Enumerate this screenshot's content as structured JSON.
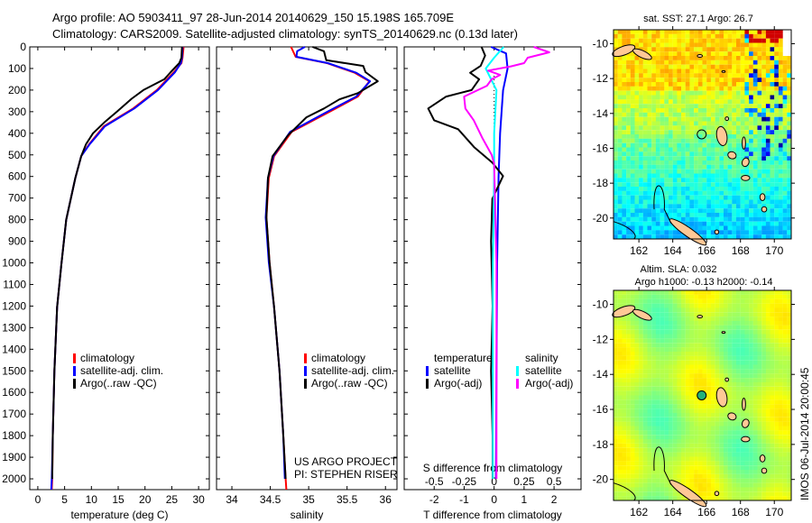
{
  "title_line1": "Argo profile: AO 5903411_97 28-Jun-2014 20140629_150 15.198S 165.709E",
  "title_line2": "Climatology: CARS2009. Satellite-adjusted climatology: synTS_20140629.nc (0.13d later)",
  "depth_ticks": [
    0,
    100,
    200,
    300,
    400,
    500,
    600,
    700,
    800,
    900,
    1000,
    1100,
    1200,
    1300,
    1400,
    1500,
    1600,
    1700,
    1800,
    1900,
    2000
  ],
  "depth_range": [
    0,
    2050
  ],
  "colors": {
    "climatology": "#ff0000",
    "satellite": "#0000ff",
    "argo": "#000000",
    "sal_satellite": "#00ffff",
    "sal_argo": "#ff00ff",
    "land": "#ffc896"
  },
  "chart_data": [
    {
      "type": "line",
      "id": "temperature",
      "xlabel": "temperature (deg C)",
      "xlim": [
        -1.5,
        32
      ],
      "xticks": [
        0,
        5,
        10,
        15,
        20,
        25,
        30
      ],
      "legend": [
        "climatology",
        "satellite-adj. clim.",
        "Argo(..raw -QC)"
      ],
      "series": [
        {
          "name": "climatology",
          "color": "#ff0000",
          "depth": [
            0,
            50,
            75,
            117,
            200,
            285,
            368,
            450,
            506,
            607,
            800,
            1008,
            1205,
            1500,
            1800,
            2000,
            2050
          ],
          "values": [
            27.2,
            27.0,
            26.8,
            25.4,
            22.2,
            17.8,
            12.3,
            9.6,
            8.1,
            7.0,
            5.3,
            4.4,
            3.6,
            3.1,
            2.8,
            2.7,
            2.6
          ]
        },
        {
          "name": "satellite-adj. clim.",
          "color": "#0000ff",
          "depth": [
            0,
            50,
            75,
            117,
            200,
            285,
            368,
            450,
            506,
            607,
            800,
            1008,
            1205,
            1500,
            1800,
            2000,
            2050
          ],
          "values": [
            27.0,
            26.9,
            26.7,
            25.6,
            22.4,
            18.0,
            12.5,
            9.7,
            8.1,
            7.0,
            5.3,
            4.4,
            3.6,
            3.1,
            2.8,
            2.6,
            2.5
          ]
        },
        {
          "name": "Argo",
          "color": "#000000",
          "depth": [
            0,
            50,
            75,
            117,
            150,
            200,
            240,
            297,
            350,
            400,
            450,
            506,
            607,
            800,
            1008,
            1205,
            1500,
            1800,
            2000
          ],
          "values": [
            26.9,
            26.8,
            26.4,
            24.8,
            23.6,
            19.7,
            17.5,
            14.9,
            12.4,
            10.3,
            9.0,
            8.1,
            7.0,
            5.3,
            4.4,
            3.6,
            3.1,
            2.8,
            2.7
          ]
        }
      ]
    },
    {
      "type": "line",
      "id": "salinity",
      "xlabel": "salinity",
      "xlim": [
        33.8,
        36.15
      ],
      "xticks": [
        34,
        34.5,
        35,
        35.5,
        36
      ],
      "legend": [
        "climatology",
        "satellite-adj. clim.",
        "Argo(..raw -QC)"
      ],
      "annotation": [
        "US ARGO PROJECT",
        "PI: STEPHEN RISER"
      ],
      "series": [
        {
          "name": "climatology",
          "color": "#ff0000",
          "depth": [
            0,
            46,
            75,
            120,
            159,
            230,
            297,
            393,
            506,
            607,
            790,
            996,
            1205,
            1500,
            1800,
            2000,
            2050
          ],
          "values": [
            34.77,
            34.83,
            35.24,
            35.6,
            35.79,
            35.64,
            35.29,
            34.78,
            34.55,
            34.48,
            34.45,
            34.49,
            34.55,
            34.62,
            34.67,
            34.7,
            34.71
          ]
        },
        {
          "name": "satellite-adj. clim.",
          "color": "#0000ff",
          "depth": [
            0,
            20,
            46,
            75,
            120,
            159,
            230,
            297,
            393,
            506,
            607,
            790,
            996,
            1205,
            1500,
            1800,
            2000
          ],
          "values": [
            34.95,
            34.85,
            34.84,
            35.25,
            35.62,
            35.8,
            35.62,
            35.26,
            34.76,
            34.54,
            34.47,
            34.44,
            34.48,
            34.55,
            34.62,
            34.67,
            34.69
          ]
        },
        {
          "name": "Argo",
          "color": "#000000",
          "depth": [
            0,
            20,
            50,
            62,
            88,
            117,
            159,
            214,
            243,
            285,
            326,
            410,
            506,
            607,
            790,
            996,
            1205,
            1500,
            1800,
            2000
          ],
          "values": [
            35.05,
            35.2,
            35.22,
            35.23,
            35.71,
            35.74,
            35.9,
            35.64,
            35.4,
            35.2,
            34.97,
            34.73,
            34.53,
            34.47,
            34.45,
            34.49,
            34.55,
            34.62,
            34.67,
            34.7
          ]
        }
      ]
    },
    {
      "type": "line",
      "id": "differences",
      "xlabel": "T difference from climatology",
      "xlabel2": "S difference from climatology",
      "xlim": [
        -3.0,
        2.9
      ],
      "xticks": [
        -2,
        -1,
        0,
        1,
        2
      ],
      "s_xticks": [
        -0.5,
        -0.25,
        0,
        0.25,
        0.5
      ],
      "s_tick_labels": [
        "-0.5",
        "-0.25",
        "0",
        "0.25",
        "0.5"
      ],
      "legend_temperature": {
        "title": "temperature",
        "items": [
          "satellite",
          "Argo(-adj)"
        ]
      },
      "legend_salinity": {
        "title": "salinity",
        "items": [
          "satellite",
          "Argo(-adj)"
        ]
      },
      "series": [
        {
          "name": "T satellite",
          "color": "#0000ff",
          "scale": "T",
          "depth": [
            0,
            30,
            100,
            200,
            400,
            600,
            1000,
            1500,
            2000
          ],
          "values": [
            -0.1,
            0.4,
            0.45,
            0.3,
            0.2,
            0.15,
            0.1,
            0.08,
            0.06
          ]
        },
        {
          "name": "T Argo(-adj)",
          "color": "#000000",
          "scale": "T",
          "depth": [
            0,
            40,
            88,
            120,
            150,
            200,
            230,
            285,
            340,
            381,
            464,
            536,
            598,
            703,
            900,
            1200,
            1500,
            1800,
            2000
          ],
          "values": [
            -0.42,
            -0.3,
            -0.45,
            -0.8,
            -0.5,
            -0.75,
            -1.6,
            -2.2,
            -2.0,
            -1.2,
            -0.67,
            -0.06,
            0.3,
            -0.06,
            -0.1,
            -0.05,
            -0.1,
            -0.05,
            -0.05
          ]
        },
        {
          "name": "S satellite",
          "color": "#00ffff",
          "scale": "S",
          "depth": [
            0,
            50,
            100,
            200,
            400,
            600,
            1000,
            2000
          ],
          "values": [
            0.08,
            0.0,
            -0.07,
            0.02,
            0.0,
            0.0,
            -0.01,
            -0.01
          ]
        },
        {
          "name": "S Argo(-adj)",
          "color": "#ff00ff",
          "scale": "S",
          "depth": [
            0,
            25,
            50,
            75,
            90,
            110,
            130,
            150,
            180,
            230,
            285,
            340,
            420,
            500,
            540,
            1000,
            2000
          ],
          "values": [
            0.33,
            0.46,
            0.28,
            0.25,
            0.14,
            -0.05,
            0.05,
            -0.02,
            -0.06,
            -0.25,
            -0.24,
            -0.17,
            -0.1,
            -0.02,
            0.0,
            0.02,
            0.02
          ]
        }
      ]
    }
  ],
  "maps": [
    {
      "id": "sst",
      "title": "sat. SST: 27.1 Argo: 26.7",
      "lon_ticks": [
        162,
        164,
        166,
        168,
        170
      ],
      "lat_ticks": [
        -10,
        -12,
        -14,
        -16,
        -18,
        -20
      ],
      "lon_range": [
        160.5,
        171
      ],
      "lat_range": [
        -9.2,
        -21.2
      ],
      "float_position": [
        165.709,
        -15.198
      ]
    },
    {
      "id": "sla",
      "title": "Altim. SLA: 0.032",
      "subtitle": "Argo h1000: -0.13 h2000: -0.14",
      "lon_ticks": [
        162,
        164,
        166,
        168,
        170
      ],
      "lat_ticks": [
        -10,
        -12,
        -14,
        -16,
        -18,
        -20
      ],
      "lon_range": [
        160.5,
        171
      ],
      "lat_range": [
        -9.2,
        -21.2
      ],
      "float_position": [
        165.709,
        -15.198
      ]
    }
  ],
  "stamp": "IMOS 06-Jul-2014 20:00:45"
}
